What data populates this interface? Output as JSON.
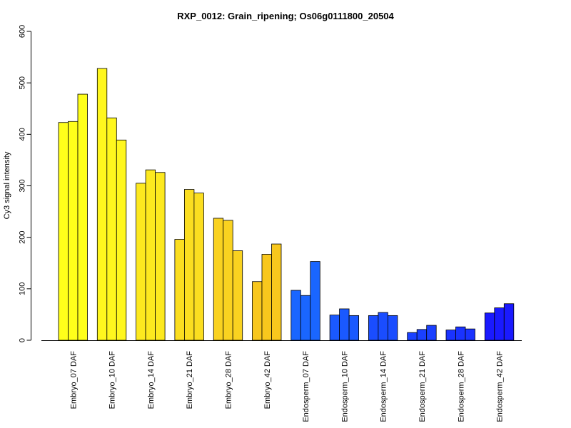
{
  "chart_data": {
    "type": "bar",
    "title": "RXP_0012: Grain_ripening; Os06g0111800_20504",
    "ylabel": "Cy3 signal intensity",
    "xlabel": "",
    "ylim": [
      0,
      600
    ],
    "yticks": [
      0,
      100,
      200,
      300,
      400,
      500,
      600
    ],
    "grid": false,
    "legend": "none",
    "categories": [
      "Embryo_07 DAF",
      "Embryo_10 DAF",
      "Embryo_14 DAF",
      "Embryo_21 DAF",
      "Embryo_28 DAF",
      "Embryo_42 DAF",
      "Endosperm_07 DAF",
      "Endosperm_10 DAF",
      "Endosperm_14 DAF",
      "Endosperm_21 DAF",
      "Endosperm_28 DAF",
      "Endosperm_42 DAF"
    ],
    "group_colors": [
      "#ffff1a",
      "#fff71e",
      "#fde91f",
      "#fbde20",
      "#f9d220",
      "#f8c71d",
      "#1a66ff",
      "#1a59ff",
      "#1a4dff",
      "#1a40ff",
      "#1a33ff",
      "#1a1aff"
    ],
    "values": [
      [
        423,
        425,
        478
      ],
      [
        528,
        432,
        389
      ],
      [
        305,
        331,
        326
      ],
      [
        196,
        293,
        286
      ],
      [
        237,
        233,
        174
      ],
      [
        114,
        167,
        187
      ],
      [
        97,
        87,
        153
      ],
      [
        49,
        61,
        48
      ],
      [
        48,
        54,
        48
      ],
      [
        15,
        21,
        29
      ],
      [
        20,
        26,
        22
      ],
      [
        53,
        63,
        71
      ]
    ]
  }
}
